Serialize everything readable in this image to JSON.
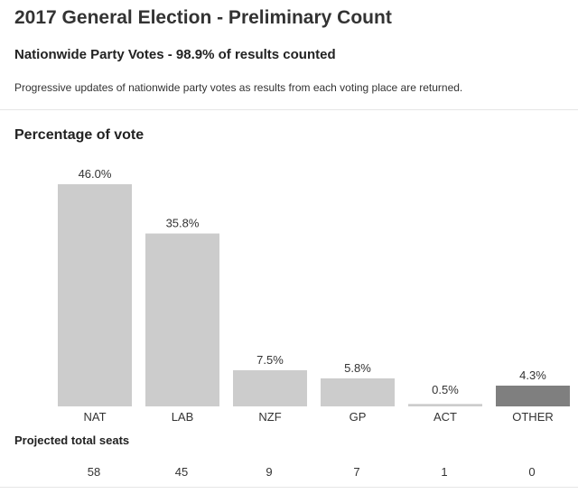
{
  "header": {
    "title": "2017 General Election - Preliminary Count",
    "subtitle": "Nationwide Party Votes - 98.9% of results counted",
    "description": "Progressive updates of nationwide party votes as results from each voting place are returned."
  },
  "chart_data": {
    "type": "bar",
    "title": "Percentage of vote",
    "categories": [
      "NAT",
      "LAB",
      "NZF",
      "GP",
      "ACT",
      "OTHER"
    ],
    "values": [
      46.0,
      35.8,
      7.5,
      5.8,
      0.5,
      4.3
    ],
    "value_labels": [
      "46.0%",
      "35.8%",
      "7.5%",
      "5.8%",
      "0.5%",
      "4.3%"
    ],
    "colors": [
      "#cccccc",
      "#cccccc",
      "#cccccc",
      "#cccccc",
      "#cccccc",
      "#7f7f7f"
    ],
    "xlabel": "",
    "ylabel": "",
    "ylim": [
      0,
      46.0
    ],
    "grid": false
  },
  "seats": {
    "title": "Projected total seats",
    "values": [
      "58",
      "45",
      "9",
      "7",
      "1",
      "0"
    ]
  }
}
